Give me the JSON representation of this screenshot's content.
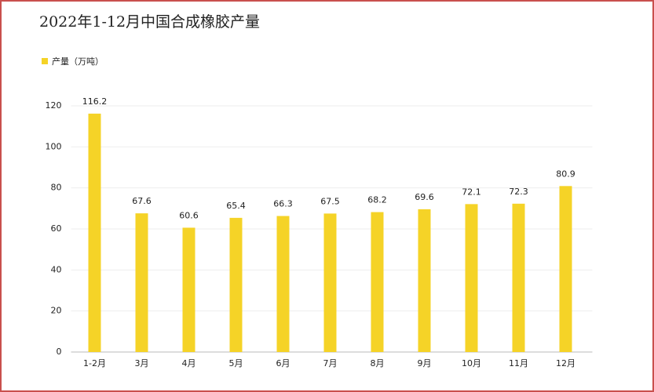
{
  "chart_data": {
    "type": "bar",
    "title": "2022年1-12月中国合成橡胶产量",
    "categories": [
      "1-2月",
      "3月",
      "4月",
      "5月",
      "6月",
      "7月",
      "8月",
      "9月",
      "10月",
      "11月",
      "12月"
    ],
    "series": [
      {
        "name": "产量（万吨）",
        "color": "#f5d327",
        "values": [
          116.2,
          67.6,
          60.6,
          65.4,
          66.3,
          67.5,
          68.2,
          69.6,
          72.1,
          72.3,
          80.9
        ]
      }
    ],
    "ylim": [
      0,
      120
    ],
    "yticks": [
      0,
      20,
      40,
      60,
      80,
      100,
      120
    ],
    "grid": true,
    "legend": "top-left"
  }
}
